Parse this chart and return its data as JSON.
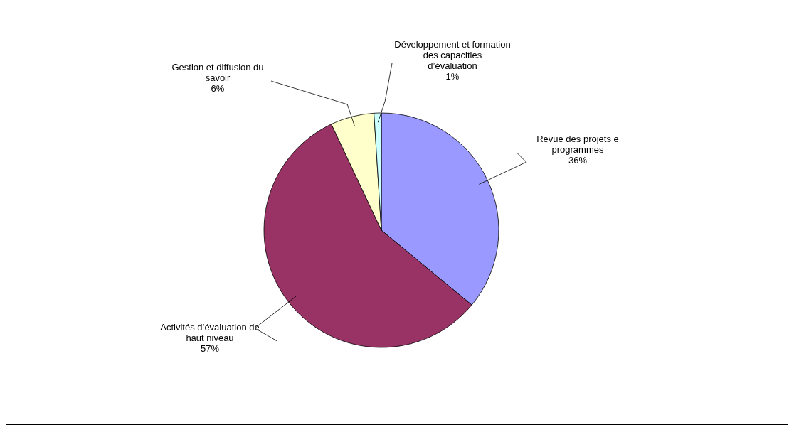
{
  "chart_data": {
    "type": "pie",
    "categories": [
      "Revue des projets e programmes",
      "Activités d’évaluation de haut niveau",
      "Gestion et diffusion du savoir",
      "Développement et formation des capacities d’évaluation"
    ],
    "values": [
      36,
      57,
      6,
      1
    ],
    "value_labels": [
      "36%",
      "57%",
      "6%",
      "1%"
    ],
    "colors": [
      "#9999ff",
      "#993366",
      "#ffffcc",
      "#ccffff"
    ]
  }
}
